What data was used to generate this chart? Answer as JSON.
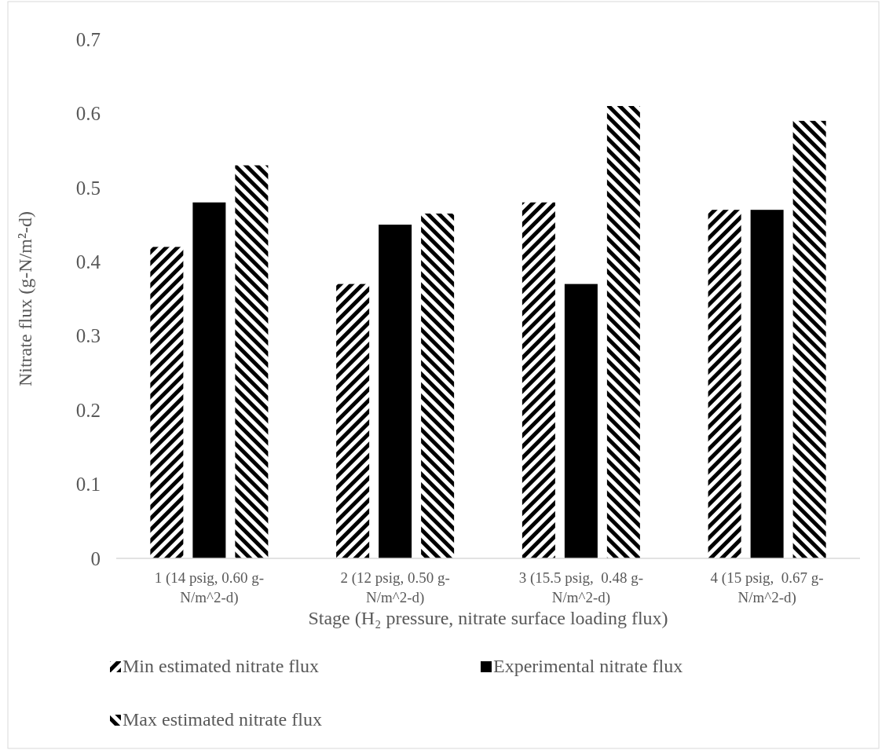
{
  "chart_data": {
    "type": "bar",
    "categories": [
      "1 (14 psig, 0.60 g-N/m^2-d)",
      "2 (12 psig, 0.50 g-N/m^2-d)",
      "3 (15.5 psig,  0.48 g-N/m^2-d)",
      "4 (15 psig,  0.67 g-N/m^2-d)"
    ],
    "series": [
      {
        "name": "Min estimated nitrate flux",
        "color": "#000000",
        "values": [
          0.42,
          0.37,
          0.48,
          0.47
        ]
      },
      {
        "name": "Experimental nitrate flux",
        "color": "#000000",
        "values": [
          0.48,
          0.45,
          0.37,
          0.47
        ]
      },
      {
        "name": "Max estimated nitrate flux",
        "color": "#000000",
        "values": [
          0.53,
          0.465,
          0.61,
          0.59
        ]
      }
    ],
    "xlabel": "Stage (H₂ pressure, nitrate surface loading flux)",
    "ylabel": "Nitrate flux (g-N/m²-d)",
    "ylim": [
      0,
      0.7
    ],
    "yticks": [
      0,
      0.1,
      0.2,
      0.3,
      0.4,
      0.5,
      0.6,
      0.7
    ],
    "grid": false,
    "legend": "bottom"
  }
}
